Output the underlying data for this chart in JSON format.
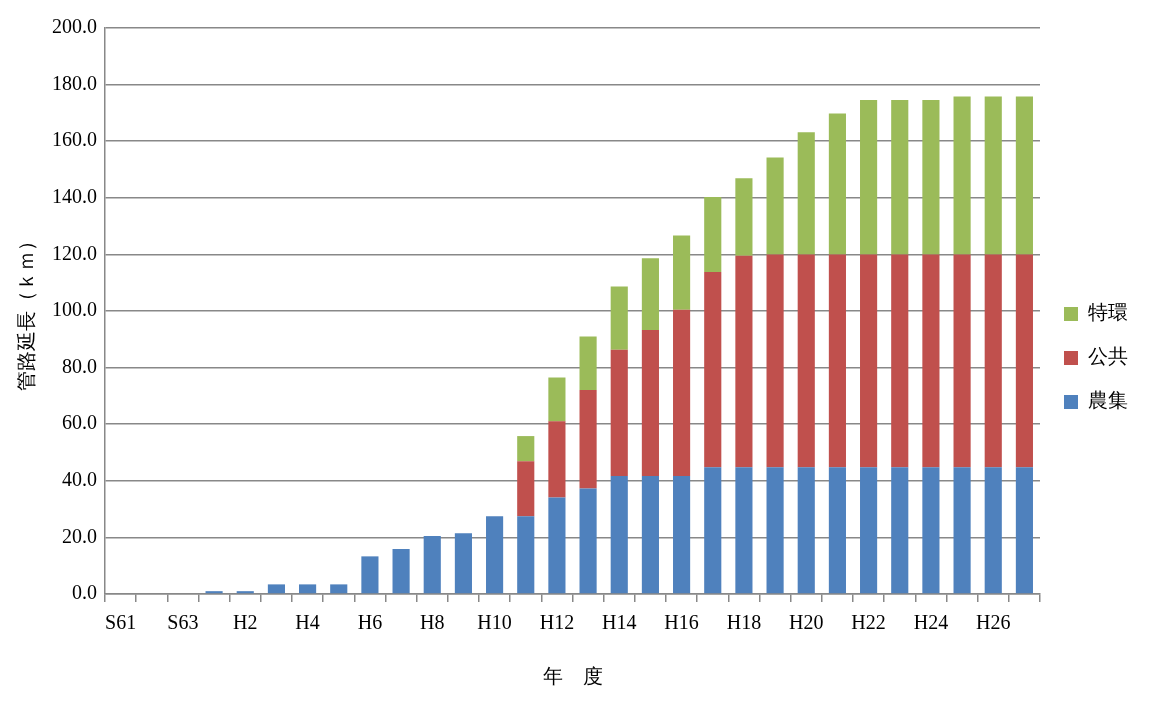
{
  "chart_data": {
    "type": "bar",
    "stacked": true,
    "xlabel": "年　度",
    "ylabel": "管路延長（ｋｍ）",
    "categories": [
      "S61",
      null,
      "S63",
      null,
      "H2",
      null,
      "H4",
      null,
      "H6",
      null,
      "H8",
      null,
      "H10",
      null,
      "H12",
      null,
      "H14",
      null,
      "H16",
      null,
      "H18",
      null,
      "H20",
      null,
      "H22",
      null,
      "H24",
      null,
      "H26",
      null
    ],
    "series": [
      {
        "name": "農集",
        "color": "#4f81bd",
        "values": [
          0,
          0,
          0,
          1.0,
          1.0,
          3.4,
          3.4,
          3.4,
          13.3,
          15.9,
          20.5,
          21.5,
          27.5,
          27.5,
          34.1,
          37.3,
          41.7,
          41.7,
          41.7,
          44.8,
          44.8,
          44.8,
          44.8,
          44.8,
          44.8,
          44.8,
          44.8,
          44.8,
          44.8,
          44.8
        ]
      },
      {
        "name": "公共",
        "color": "#c0504d",
        "values": [
          null,
          null,
          null,
          null,
          null,
          null,
          null,
          null,
          null,
          null,
          null,
          null,
          null,
          19.4,
          26.9,
          34.8,
          44.6,
          51.6,
          58.7,
          69.0,
          74.7,
          75.2,
          75.2,
          75.2,
          75.2,
          75.2,
          75.2,
          75.2,
          75.2,
          75.2
        ]
      },
      {
        "name": "特環",
        "color": "#9bbb59",
        "values": [
          null,
          null,
          null,
          null,
          null,
          null,
          null,
          null,
          null,
          null,
          null,
          null,
          null,
          8.9,
          15.5,
          18.9,
          22.4,
          25.3,
          26.3,
          26.5,
          27.4,
          34.2,
          43.2,
          49.8,
          54.6,
          54.6,
          54.6,
          55.8,
          55.8,
          55.8
        ]
      }
    ],
    "ylim": [
      0,
      200
    ],
    "yticks": [
      {
        "value": 0,
        "label": "0.0"
      },
      {
        "value": 20,
        "label": "20.0"
      },
      {
        "value": 40,
        "label": "40.0"
      },
      {
        "value": 60,
        "label": "60.0"
      },
      {
        "value": 80,
        "label": "80.0"
      },
      {
        "value": 100,
        "label": "100.0"
      },
      {
        "value": 120,
        "label": "120.0"
      },
      {
        "value": 140,
        "label": "140.0"
      },
      {
        "value": 160,
        "label": "160.0"
      },
      {
        "value": 180,
        "label": "180.0"
      },
      {
        "value": 200,
        "label": "200.0"
      }
    ],
    "grid": "y",
    "legend": "right"
  }
}
